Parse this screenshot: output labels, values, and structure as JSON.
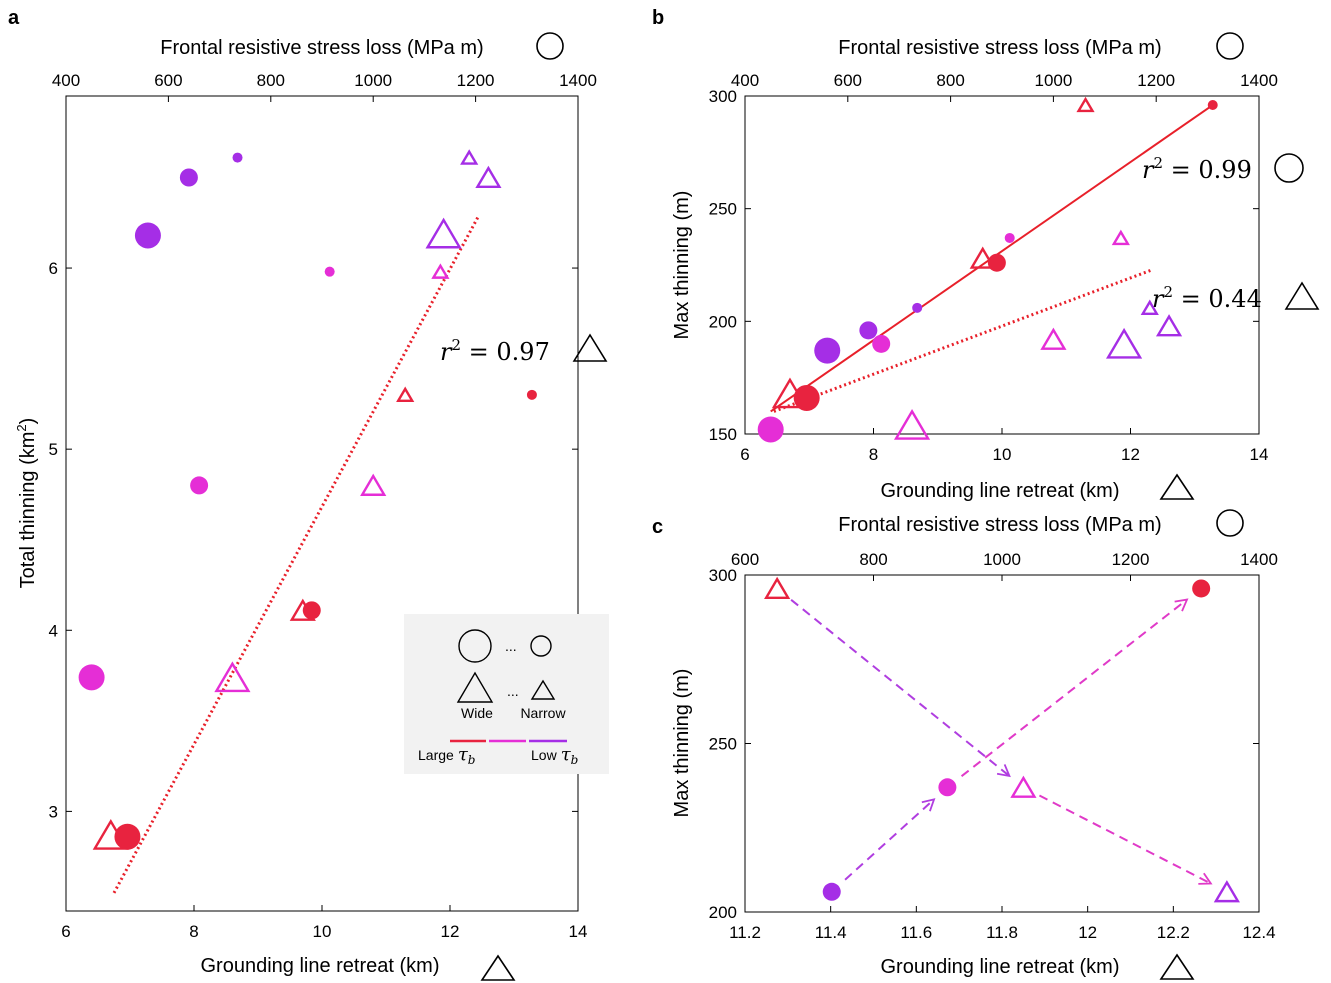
{
  "chart_data": [
    {
      "panel": "a",
      "type": "scatter",
      "xlabel": "Grounding line retreat (km)",
      "x2label": "Frontal resistive stress loss (MPa m)",
      "ylabel": "Total thinning (km",
      "ylabel_sup": "2",
      "ylabel_end": ")",
      "xlim": [
        6,
        14
      ],
      "x2lim": [
        400,
        1400
      ],
      "ylim": [
        2.45,
        6.95
      ],
      "xticks": [
        "6",
        "8",
        "10",
        "12",
        "14"
      ],
      "x2ticks": [
        "400",
        "600",
        "800",
        "1000",
        "1200",
        "1400"
      ],
      "yticks": [
        "3",
        "4",
        "5",
        "6"
      ],
      "triangles": [
        {
          "x": 6.7,
          "y": 2.87,
          "size": "L",
          "color": "#e8233f"
        },
        {
          "x": 8.6,
          "y": 3.74,
          "size": "L",
          "color": "#e52ed6"
        },
        {
          "x": 11.9,
          "y": 6.19,
          "size": "L",
          "color": "#a52ee6"
        },
        {
          "x": 9.7,
          "y": 4.11,
          "size": "M",
          "color": "#e8233f"
        },
        {
          "x": 10.8,
          "y": 4.8,
          "size": "M",
          "color": "#e52ed6"
        },
        {
          "x": 12.6,
          "y": 6.5,
          "size": "M",
          "color": "#a52ee6"
        },
        {
          "x": 11.3,
          "y": 5.3,
          "size": "S",
          "color": "#e8233f"
        },
        {
          "x": 11.85,
          "y": 5.98,
          "size": "S",
          "color": "#e52ed6"
        },
        {
          "x": 12.3,
          "y": 6.61,
          "size": "S",
          "color": "#a52ee6"
        }
      ],
      "circles": [
        {
          "x2": 520,
          "y": 2.86,
          "size": "L",
          "color": "#e8233f"
        },
        {
          "x2": 450,
          "y": 3.74,
          "size": "L",
          "color": "#e52ed6"
        },
        {
          "x2": 560,
          "y": 6.18,
          "size": "L",
          "color": "#a52ee6"
        },
        {
          "x2": 880,
          "y": 4.11,
          "size": "M",
          "color": "#e8233f"
        },
        {
          "x2": 660,
          "y": 4.8,
          "size": "M",
          "color": "#e52ed6"
        },
        {
          "x2": 640,
          "y": 6.5,
          "size": "M",
          "color": "#a52ee6"
        },
        {
          "x2": 1310,
          "y": 5.3,
          "size": "S",
          "color": "#e8233f"
        },
        {
          "x2": 915,
          "y": 5.98,
          "size": "S",
          "color": "#e52ed6"
        },
        {
          "x2": 735,
          "y": 6.61,
          "size": "S",
          "color": "#a52ee6"
        }
      ],
      "fits": [
        {
          "shape": "triangle",
          "style": "dotted",
          "x": [
            6.75,
            12.45
          ],
          "y": [
            2.55,
            6.29
          ],
          "r2": "r² = 0.97",
          "color": "#e8202a"
        }
      ]
    },
    {
      "panel": "b",
      "type": "scatter",
      "xlabel": "Grounding line retreat (km)",
      "x2label": "Frontal resistive stress loss (MPa m)",
      "ylabel": "Max thinning (m)",
      "xlim": [
        6,
        14
      ],
      "x2lim": [
        400,
        1400
      ],
      "ylim": [
        150,
        300
      ],
      "xticks": [
        "6",
        "8",
        "10",
        "12",
        "14"
      ],
      "x2ticks": [
        "400",
        "600",
        "800",
        "1000",
        "1200",
        "1400"
      ],
      "yticks": [
        "150",
        "200",
        "250",
        "300"
      ],
      "triangles": [
        {
          "x": 6.7,
          "y": 168,
          "size": "L",
          "color": "#e8233f"
        },
        {
          "x": 8.6,
          "y": 154,
          "size": "L",
          "color": "#e52ed6"
        },
        {
          "x": 11.9,
          "y": 190,
          "size": "L",
          "color": "#a52ee6"
        },
        {
          "x": 9.7,
          "y": 228,
          "size": "M",
          "color": "#e8233f"
        },
        {
          "x": 10.8,
          "y": 192,
          "size": "M",
          "color": "#e52ed6"
        },
        {
          "x": 12.6,
          "y": 198,
          "size": "M",
          "color": "#a52ee6"
        },
        {
          "x": 11.3,
          "y": 296,
          "size": "S",
          "color": "#e8233f"
        },
        {
          "x": 11.85,
          "y": 237,
          "size": "S",
          "color": "#e52ed6"
        },
        {
          "x": 12.3,
          "y": 206,
          "size": "S",
          "color": "#a52ee6"
        }
      ],
      "circles": [
        {
          "x2": 520,
          "y": 166,
          "size": "L",
          "color": "#e8233f"
        },
        {
          "x2": 450,
          "y": 152,
          "size": "L",
          "color": "#e52ed6"
        },
        {
          "x2": 560,
          "y": 187,
          "size": "L",
          "color": "#a52ee6"
        },
        {
          "x2": 890,
          "y": 226,
          "size": "M",
          "color": "#e8233f"
        },
        {
          "x2": 665,
          "y": 190,
          "size": "M",
          "color": "#e52ed6"
        },
        {
          "x2": 640,
          "y": 196,
          "size": "M",
          "color": "#a52ee6"
        },
        {
          "x2": 1310,
          "y": 296,
          "size": "S",
          "color": "#e8233f"
        },
        {
          "x2": 915,
          "y": 237,
          "size": "S",
          "color": "#e52ed6"
        },
        {
          "x2": 735,
          "y": 206,
          "size": "S",
          "color": "#a52ee6"
        }
      ],
      "fits": [
        {
          "shape": "circle",
          "style": "solid",
          "x2": [
            450,
            1310
          ],
          "y": [
            160,
            296
          ],
          "r2": "r² = 0.99",
          "color": "#e8202a"
        },
        {
          "shape": "triangle",
          "style": "dotted",
          "x": [
            6.45,
            12.35
          ],
          "y": [
            160,
            223
          ],
          "r2": "r² = 0.44",
          "color": "#e8202a"
        }
      ]
    },
    {
      "panel": "c",
      "type": "scatter",
      "xlabel": "Grounding line retreat (km)",
      "x2label": "Frontal resistive stress loss (MPa m)",
      "ylabel": "Max thinning (m)",
      "xlim": [
        11.2,
        12.4
      ],
      "x2lim": [
        600,
        1400
      ],
      "ylim": [
        200,
        300
      ],
      "xticks": [
        "11.2",
        "11.4",
        "11.6",
        "11.8",
        "12",
        "12.2",
        "12.4"
      ],
      "x2ticks": [
        "600",
        "800",
        "1000",
        "1200",
        "1400"
      ],
      "yticks": [
        "200",
        "250",
        "300"
      ],
      "triangles": [
        {
          "x": 11.275,
          "y": 296,
          "size": "M",
          "color": "#e8233f"
        },
        {
          "x": 11.85,
          "y": 237,
          "size": "M",
          "color": "#e52ed6"
        },
        {
          "x": 12.325,
          "y": 206,
          "size": "M",
          "color": "#a52ee6"
        }
      ],
      "circles": [
        {
          "x2": 735,
          "y": 206,
          "size": "M",
          "color": "#a52ee6"
        },
        {
          "x2": 915,
          "y": 237,
          "size": "M",
          "color": "#e52ed6"
        },
        {
          "x2": 1310,
          "y": 296,
          "size": "M",
          "color": "#e8233f"
        }
      ],
      "arrows": [
        {
          "shape": "triangle",
          "from": 0,
          "to": 1,
          "color": "#b03ee0"
        },
        {
          "shape": "triangle",
          "from": 1,
          "to": 2,
          "color": "#e03ac8"
        },
        {
          "shape": "circle",
          "from": 0,
          "to": 1,
          "color": "#b03ee0"
        },
        {
          "shape": "circle",
          "from": 1,
          "to": 2,
          "color": "#e03ac8"
        }
      ]
    }
  ],
  "legend": {
    "dots": "...",
    "wide_label": "Wide",
    "narrow_label": "Narrow",
    "large_label": "Large",
    "low_label": "Low",
    "tau_symbol": "τ",
    "tau_sub": "b",
    "gradient_colors": [
      "#e8233f",
      "#e52ed6",
      "#a52ee6"
    ]
  }
}
